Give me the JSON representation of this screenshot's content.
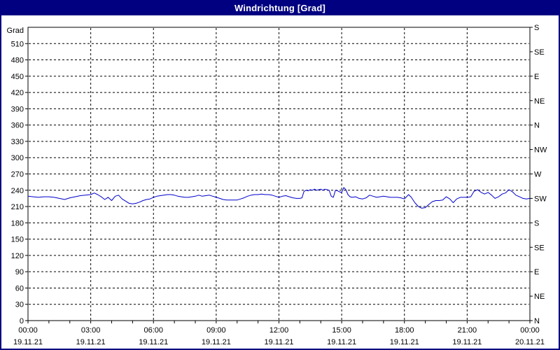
{
  "window": {
    "title": "Windrichtung [Grad]",
    "titlebar_color": "#000080",
    "border_color": "#000080",
    "background_color": "#ffffff"
  },
  "chart_data": {
    "type": "line",
    "title": "Windrichtung [Grad]",
    "ylabel": "Grad",
    "xlabel": "",
    "ylim": [
      0,
      540
    ],
    "xlim_hours": [
      0,
      24
    ],
    "grid": "dashed",
    "legend": "none",
    "axis_color": "#000000",
    "grid_color": "#000000",
    "line_color": "#0000cc",
    "y_tick_step": 30,
    "y_ticks_left": [
      510,
      480,
      450,
      420,
      390,
      360,
      330,
      300,
      270,
      240,
      210,
      180,
      150,
      120,
      90,
      60,
      30,
      0
    ],
    "y_ticks_right": [
      {
        "value": 540,
        "label": "S"
      },
      {
        "value": 495,
        "label": "SE"
      },
      {
        "value": 450,
        "label": "E"
      },
      {
        "value": 405,
        "label": "NE"
      },
      {
        "value": 360,
        "label": "N"
      },
      {
        "value": 315,
        "label": "NW"
      },
      {
        "value": 270,
        "label": "W"
      },
      {
        "value": 225,
        "label": "SW"
      },
      {
        "value": 180,
        "label": "S"
      },
      {
        "value": 135,
        "label": "SE"
      },
      {
        "value": 90,
        "label": "E"
      },
      {
        "value": 45,
        "label": "NE"
      },
      {
        "value": 0,
        "label": "N"
      }
    ],
    "x_minor_step_hours": 1,
    "x_major_ticks": [
      {
        "hour": 0,
        "time": "00:00",
        "date": "19.11.21"
      },
      {
        "hour": 3,
        "time": "03:00",
        "date": "19.11.21"
      },
      {
        "hour": 6,
        "time": "06:00",
        "date": "19.11.21"
      },
      {
        "hour": 9,
        "time": "09:00",
        "date": "19.11.21"
      },
      {
        "hour": 12,
        "time": "12:00",
        "date": "19.11.21"
      },
      {
        "hour": 15,
        "time": "15:00",
        "date": "19.11.21"
      },
      {
        "hour": 18,
        "time": "18:00",
        "date": "19.11.21"
      },
      {
        "hour": 21,
        "time": "21:00",
        "date": "19.11.21"
      },
      {
        "hour": 24,
        "time": "00:00",
        "date": "20.11.21"
      }
    ],
    "series": [
      {
        "name": "Windrichtung",
        "unit": "Grad",
        "points": [
          [
            0,
            229
          ],
          [
            0.25,
            228
          ],
          [
            0.5,
            227
          ],
          [
            0.75,
            228
          ],
          [
            1,
            228
          ],
          [
            1.25,
            227
          ],
          [
            1.5,
            225
          ],
          [
            1.75,
            223
          ],
          [
            2,
            226
          ],
          [
            2.25,
            228
          ],
          [
            2.5,
            230
          ],
          [
            2.75,
            231
          ],
          [
            3,
            232
          ],
          [
            3.17,
            235
          ],
          [
            3.33,
            232
          ],
          [
            3.5,
            228
          ],
          [
            3.67,
            223
          ],
          [
            3.83,
            227
          ],
          [
            4,
            221
          ],
          [
            4.17,
            229
          ],
          [
            4.33,
            231
          ],
          [
            4.5,
            224
          ],
          [
            4.67,
            220
          ],
          [
            4.83,
            216
          ],
          [
            5,
            215
          ],
          [
            5.17,
            216
          ],
          [
            5.33,
            218
          ],
          [
            5.5,
            221
          ],
          [
            5.67,
            223
          ],
          [
            5.83,
            224
          ],
          [
            6,
            227
          ],
          [
            6.17,
            229
          ],
          [
            6.33,
            230
          ],
          [
            6.5,
            231
          ],
          [
            6.67,
            232
          ],
          [
            6.83,
            232
          ],
          [
            7,
            231
          ],
          [
            7.17,
            229
          ],
          [
            7.33,
            228
          ],
          [
            7.5,
            227
          ],
          [
            7.67,
            227
          ],
          [
            7.83,
            228
          ],
          [
            8,
            229
          ],
          [
            8.17,
            231
          ],
          [
            8.33,
            229
          ],
          [
            8.5,
            230
          ],
          [
            8.67,
            231
          ],
          [
            8.83,
            229
          ],
          [
            9,
            227
          ],
          [
            9.17,
            225
          ],
          [
            9.33,
            223
          ],
          [
            9.5,
            222
          ],
          [
            9.67,
            222
          ],
          [
            9.83,
            222
          ],
          [
            10,
            222
          ],
          [
            10.17,
            224
          ],
          [
            10.33,
            226
          ],
          [
            10.5,
            229
          ],
          [
            10.67,
            231
          ],
          [
            10.83,
            232
          ],
          [
            11,
            232
          ],
          [
            11.17,
            233
          ],
          [
            11.33,
            232
          ],
          [
            11.5,
            232
          ],
          [
            11.67,
            231
          ],
          [
            11.83,
            229
          ],
          [
            12,
            227
          ],
          [
            12.17,
            229
          ],
          [
            12.33,
            230
          ],
          [
            12.5,
            228
          ],
          [
            12.67,
            226
          ],
          [
            12.83,
            225
          ],
          [
            13,
            225
          ],
          [
            13.1,
            226
          ],
          [
            13.2,
            238
          ],
          [
            13.3,
            240
          ],
          [
            13.4,
            239
          ],
          [
            13.5,
            241
          ],
          [
            13.6,
            240
          ],
          [
            13.7,
            242
          ],
          [
            13.8,
            240
          ],
          [
            13.9,
            241
          ],
          [
            14,
            242
          ],
          [
            14.1,
            240
          ],
          [
            14.2,
            242
          ],
          [
            14.3,
            241
          ],
          [
            14.4,
            240
          ],
          [
            14.5,
            229
          ],
          [
            14.6,
            227
          ],
          [
            14.7,
            240
          ],
          [
            14.8,
            239
          ],
          [
            14.9,
            237
          ],
          [
            15,
            236
          ],
          [
            15.1,
            245
          ],
          [
            15.2,
            241
          ],
          [
            15.3,
            232
          ],
          [
            15.4,
            228
          ],
          [
            15.5,
            227
          ],
          [
            15.67,
            228
          ],
          [
            15.83,
            225
          ],
          [
            16,
            224
          ],
          [
            16.17,
            226
          ],
          [
            16.33,
            231
          ],
          [
            16.5,
            229
          ],
          [
            16.67,
            227
          ],
          [
            16.83,
            228
          ],
          [
            17,
            229
          ],
          [
            17.17,
            228
          ],
          [
            17.33,
            227
          ],
          [
            17.5,
            227
          ],
          [
            17.67,
            227
          ],
          [
            17.83,
            226
          ],
          [
            18,
            224
          ],
          [
            18.1,
            228
          ],
          [
            18.2,
            232
          ],
          [
            18.33,
            227
          ],
          [
            18.5,
            217
          ],
          [
            18.67,
            210
          ],
          [
            18.83,
            207
          ],
          [
            19,
            208
          ],
          [
            19.17,
            214
          ],
          [
            19.33,
            219
          ],
          [
            19.5,
            221
          ],
          [
            19.67,
            221
          ],
          [
            19.83,
            222
          ],
          [
            20,
            228
          ],
          [
            20.17,
            224
          ],
          [
            20.33,
            217
          ],
          [
            20.5,
            224
          ],
          [
            20.67,
            227
          ],
          [
            20.83,
            227
          ],
          [
            21,
            227
          ],
          [
            21.17,
            228
          ],
          [
            21.33,
            238
          ],
          [
            21.5,
            241
          ],
          [
            21.67,
            236
          ],
          [
            21.83,
            233
          ],
          [
            22,
            236
          ],
          [
            22.17,
            231
          ],
          [
            22.33,
            225
          ],
          [
            22.5,
            228
          ],
          [
            22.67,
            233
          ],
          [
            22.83,
            235
          ],
          [
            23,
            241
          ],
          [
            23.17,
            237
          ],
          [
            23.33,
            231
          ],
          [
            23.5,
            228
          ],
          [
            23.67,
            225
          ],
          [
            23.83,
            224
          ],
          [
            24,
            225
          ]
        ]
      }
    ]
  }
}
